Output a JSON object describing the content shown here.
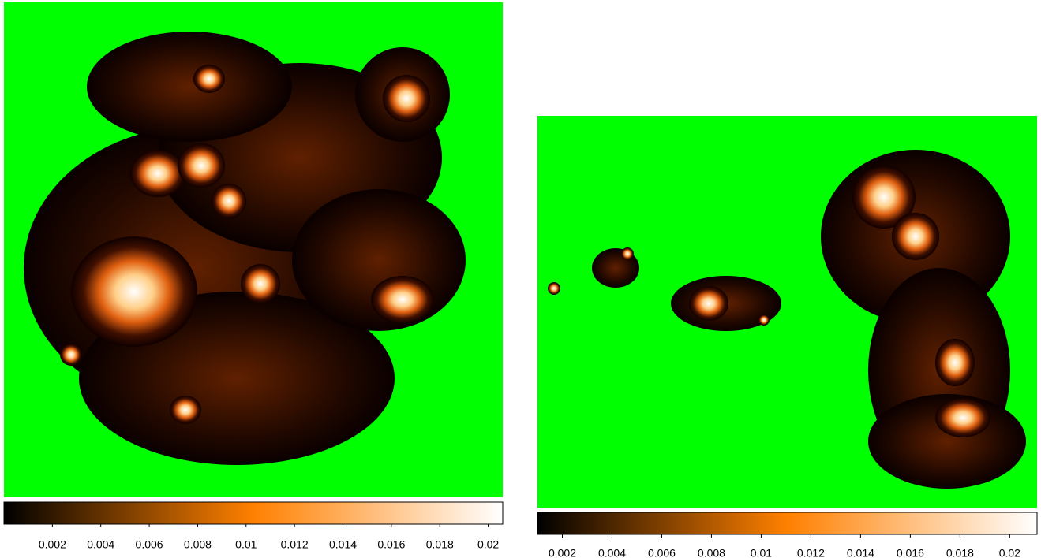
{
  "chart_data": [
    {
      "type": "image",
      "colormap": "afmhot",
      "mask_color": "#00ff00",
      "clim": [
        0,
        0.0206
      ],
      "cticks": [
        0.002,
        0.004,
        0.006,
        0.008,
        0.01,
        0.012,
        0.014,
        0.016,
        0.018,
        0.02
      ]
    },
    {
      "type": "image",
      "colormap": "afmhot",
      "mask_color": "#00ff00",
      "clim": [
        0.001,
        0.0211
      ],
      "cticks": [
        0.002,
        0.004,
        0.006,
        0.008,
        0.01,
        0.012,
        0.014,
        0.016,
        0.018,
        0.02
      ]
    }
  ]
}
